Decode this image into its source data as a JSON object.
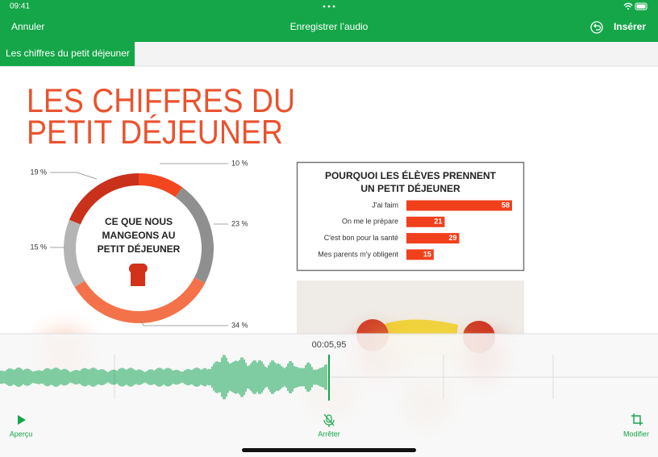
{
  "status_bar": {
    "time": "09:41"
  },
  "nav_bar": {
    "cancel": "Annuler",
    "title": "Enregistrer l’audio",
    "insert": "Insérer"
  },
  "tab": {
    "title": "Les chiffres du petit déjeuner"
  },
  "document": {
    "title_lines": [
      "LES CHIFFRES DU",
      "PETIT DÉJEUNER"
    ],
    "donut": {
      "center_lines": [
        "CE QUE NOUS",
        "MANGEONS AU",
        "PETIT DÉJEUNER"
      ],
      "values": [
        10,
        23,
        34,
        15,
        19
      ],
      "value_labels": [
        "10 %",
        "23 %",
        "34 %",
        "15 %",
        "19 %"
      ],
      "colors": [
        "#f2461f",
        "#8f8f8f",
        "#f4724a",
        "#b4b4b4",
        "#c9311b"
      ]
    },
    "bar_chart": {
      "title_lines": [
        "POURQUOI LES ÉLÈVES PRENNENT",
        "UN PETIT DÉJEUNER"
      ],
      "categories": [
        "J'ai faim",
        "On me le prépare",
        "C'est bon pour la santé",
        "Mes parents m'y obligent"
      ],
      "values": [
        58,
        21,
        29,
        15
      ],
      "color": "#f1401c"
    }
  },
  "recorder": {
    "elapsed": "00:05,95",
    "preview": "Aperçu",
    "stop": "Arrêter",
    "modify": "Modifier"
  }
}
